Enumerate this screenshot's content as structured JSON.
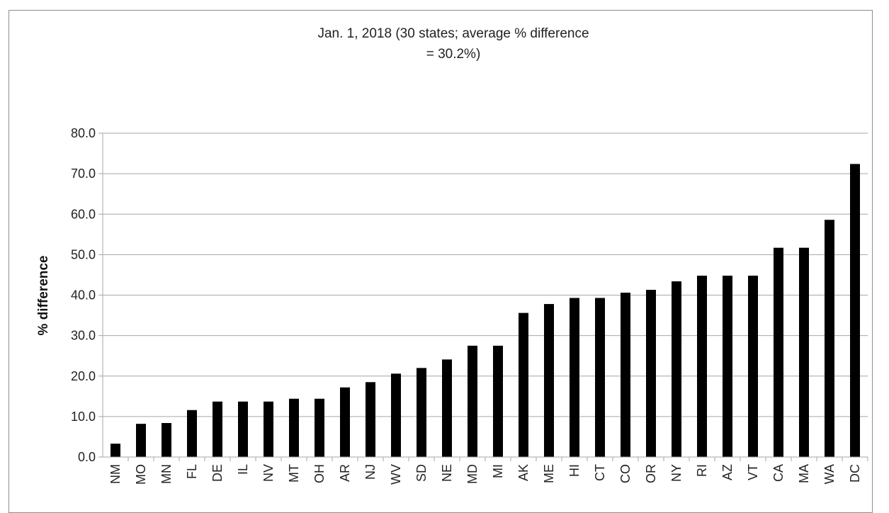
{
  "caption": "",
  "chart_data": {
    "type": "bar",
    "title_lines": [
      "Jan. 1, 2018 (30 states; average % difference",
      "= 30.2%)"
    ],
    "xlabel": "",
    "ylabel": "% difference",
    "ylim": [
      0,
      80
    ],
    "yticks": [
      "0.0",
      "10.0",
      "20.0",
      "30.0",
      "40.0",
      "50.0",
      "60.0",
      "70.0",
      "80.0"
    ],
    "grid": true,
    "bar_color": "#000000",
    "grid_color": "#a6a6a6",
    "categories": [
      "NM",
      "MO",
      "MN",
      "FL",
      "DE",
      "IL",
      "NV",
      "MT",
      "OH",
      "AR",
      "NJ",
      "WV",
      "SD",
      "NE",
      "MD",
      "MI",
      "AK",
      "ME",
      "HI",
      "CT",
      "CO",
      "OR",
      "NY",
      "RI",
      "AZ",
      "VT",
      "CA",
      "MA",
      "WA",
      "DC"
    ],
    "values": [
      3.3,
      8.2,
      8.4,
      11.6,
      13.7,
      13.7,
      13.7,
      14.4,
      14.4,
      17.2,
      18.5,
      20.6,
      22.0,
      24.1,
      27.5,
      27.5,
      35.6,
      37.8,
      39.3,
      39.3,
      40.6,
      41.3,
      43.4,
      44.8,
      44.8,
      44.8,
      51.7,
      51.7,
      58.6,
      72.4
    ]
  }
}
